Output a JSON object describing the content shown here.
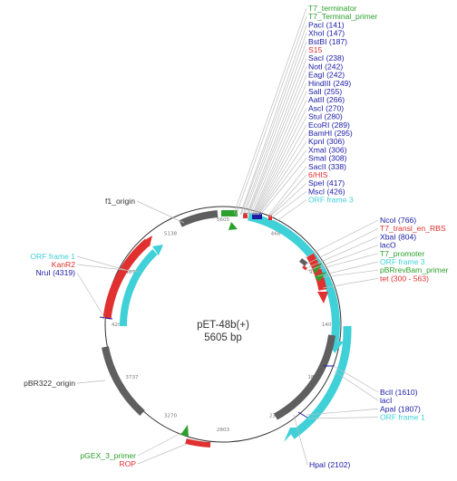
{
  "plasmid": {
    "name": "pET-48b(+)",
    "size_label": "5605 bp",
    "length": 5605
  },
  "colors": {
    "enzyme": "#1a1aa6",
    "primer": "#2ca02c",
    "feature_red": "#e0302f",
    "orf": "#3fd0d8",
    "gray": "#5f5f5f",
    "term": "#333333",
    "ori": "#333333",
    "promoter": "#2ca02c"
  },
  "ticks": [
    "5605",
    "468",
    "935",
    "1402",
    "1869",
    "2336",
    "2803",
    "3270",
    "3737",
    "4204",
    "4671",
    "5138"
  ],
  "right_labels": [
    {
      "text": "T7_terminator",
      "kind": "primer"
    },
    {
      "text": "T7_Terminal_primer",
      "kind": "primer"
    },
    {
      "text": "PacI (141)",
      "kind": "enzyme"
    },
    {
      "text": "XhoI (147)",
      "kind": "enzyme"
    },
    {
      "text": "BstBI (187)",
      "kind": "enzyme"
    },
    {
      "text": "S15",
      "kind": "feature_red"
    },
    {
      "text": "SacI (238)",
      "kind": "enzyme"
    },
    {
      "text": "NotI (242)",
      "kind": "enzyme"
    },
    {
      "text": "EagI (242)",
      "kind": "enzyme"
    },
    {
      "text": "HindIII (249)",
      "kind": "enzyme"
    },
    {
      "text": "SalI (255)",
      "kind": "enzyme"
    },
    {
      "text": "AatII (266)",
      "kind": "enzyme"
    },
    {
      "text": "AscI (270)",
      "kind": "enzyme"
    },
    {
      "text": "StuI (280)",
      "kind": "enzyme"
    },
    {
      "text": "EcoRI (289)",
      "kind": "enzyme"
    },
    {
      "text": "BamHI (295)",
      "kind": "enzyme"
    },
    {
      "text": "KpnI (306)",
      "kind": "enzyme"
    },
    {
      "text": "XmaI (306)",
      "kind": "enzyme"
    },
    {
      "text": "SmaI (308)",
      "kind": "enzyme"
    },
    {
      "text": "SacII (338)",
      "kind": "enzyme"
    },
    {
      "text": "6/HIS",
      "kind": "feature_red"
    },
    {
      "text": "SpeI (417)",
      "kind": "enzyme"
    },
    {
      "text": "MscI (426)",
      "kind": "enzyme"
    },
    {
      "text": "ORF frame 3",
      "kind": "orf"
    }
  ],
  "right_mid_labels": [
    {
      "text": "NcoI (766)",
      "kind": "enzyme"
    },
    {
      "text": "T7_transl_en_RBS",
      "kind": "feature_red"
    },
    {
      "text": "XbaI (804)",
      "kind": "enzyme"
    },
    {
      "text": "lacO",
      "kind": "enzyme"
    },
    {
      "text": "T7_promoter",
      "kind": "primer"
    },
    {
      "text": "ORF frame 3",
      "kind": "orf"
    },
    {
      "text": "pBRrevBam_primer",
      "kind": "primer"
    },
    {
      "text": "tet (300 - 563)",
      "kind": "feature_red"
    }
  ],
  "right_low_labels": [
    {
      "text": "BclI (1610)",
      "kind": "enzyme"
    },
    {
      "text": "lacI",
      "kind": "enzyme"
    },
    {
      "text": "ApaI (1807)",
      "kind": "enzyme"
    },
    {
      "text": "ORF frame 1",
      "kind": "orf"
    }
  ],
  "bottom_labels": [
    {
      "text": "HpaI (2102)",
      "kind": "enzyme"
    }
  ],
  "left_labels": [
    {
      "text": "f1_origin",
      "kind": "ori"
    },
    {
      "text": "ORF frame 1",
      "kind": "orf"
    },
    {
      "text": "KanR2",
      "kind": "feature_red"
    },
    {
      "text": "NruI (4319)",
      "kind": "enzyme"
    },
    {
      "text": "pBR322_origin",
      "kind": "ori"
    },
    {
      "text": "pGEX_3_primer",
      "kind": "primer"
    },
    {
      "text": "ROP",
      "kind": "feature_red"
    }
  ]
}
